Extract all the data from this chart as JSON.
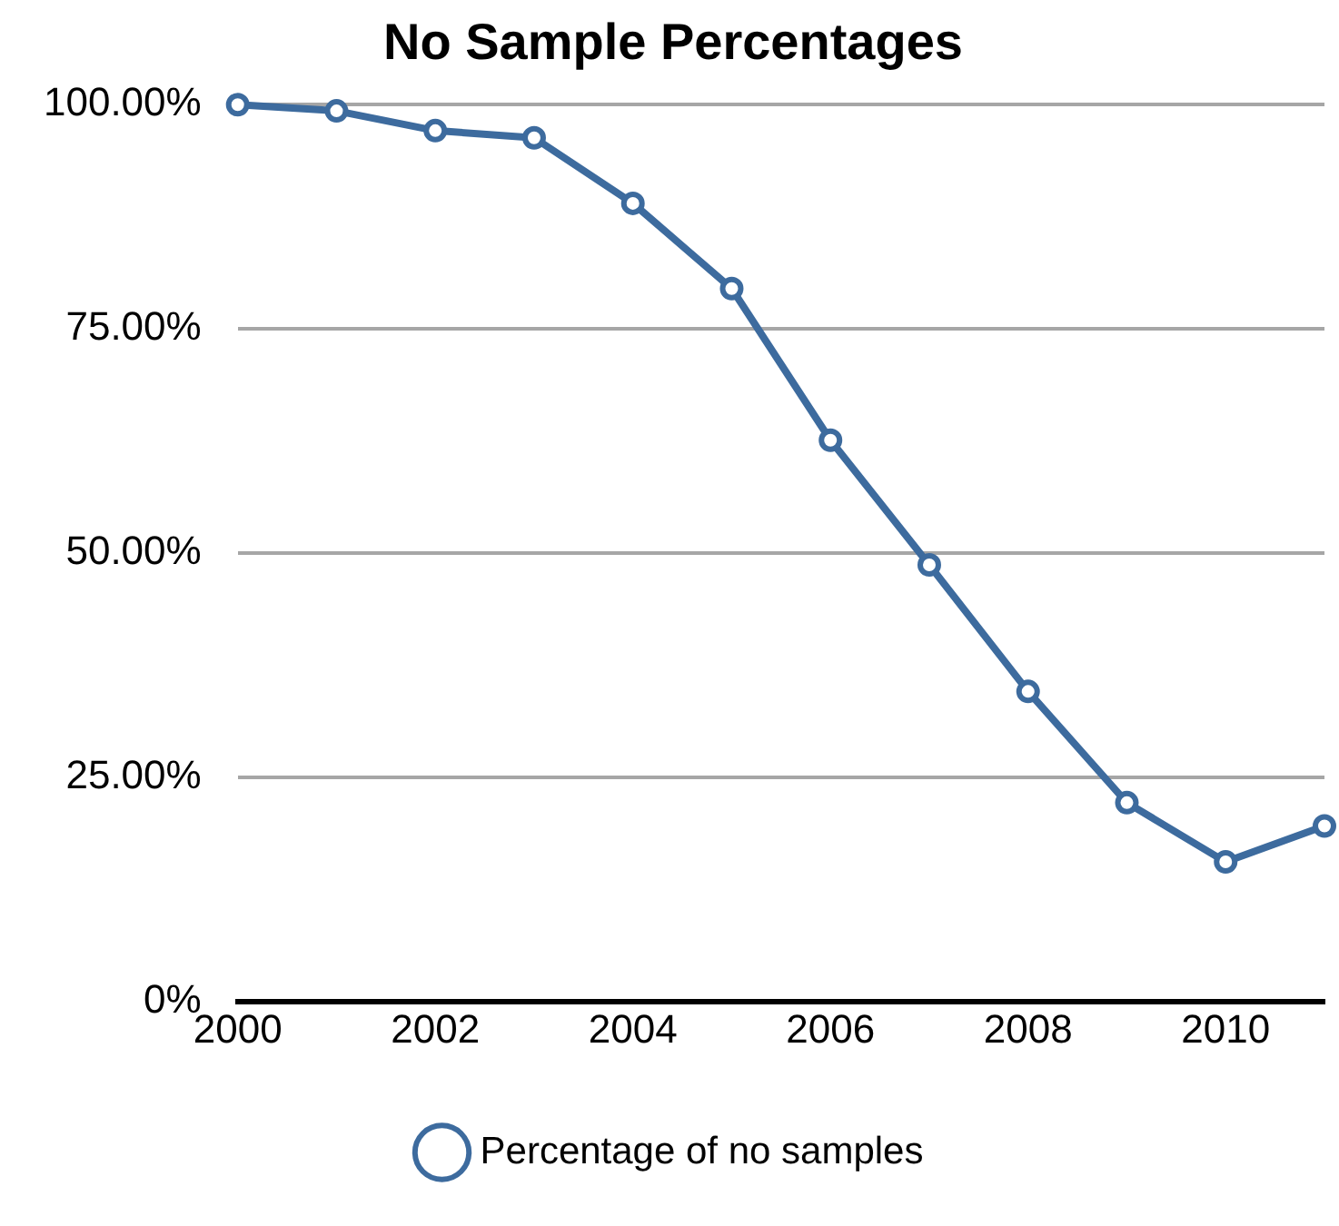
{
  "chart_data": {
    "type": "line",
    "title": "No Sample Percentages",
    "x": [
      2000,
      2001,
      2002,
      2003,
      2004,
      2005,
      2006,
      2007,
      2008,
      2009,
      2010,
      2011
    ],
    "series": [
      {
        "name": "Percentage of no samples",
        "color": "#3d6b9e",
        "values": [
          100,
          99.3,
          97.1,
          96.3,
          89.0,
          79.5,
          62.6,
          48.7,
          34.6,
          22.2,
          15.6,
          19.6
        ]
      }
    ],
    "xlim": [
      2000,
      2011
    ],
    "xticks": [
      2000,
      2002,
      2004,
      2006,
      2008,
      2010
    ],
    "ylim": [
      0,
      100
    ],
    "yticks": [
      {
        "value": 0,
        "label": "0%"
      },
      {
        "value": 25,
        "label": "25.00%"
      },
      {
        "value": 50,
        "label": "50.00%"
      },
      {
        "value": 75,
        "label": "75.00%"
      },
      {
        "value": 100,
        "label": "100.00%"
      }
    ],
    "grid": "y",
    "legend": "bottom",
    "marker": "circle",
    "line_style": "solid"
  }
}
